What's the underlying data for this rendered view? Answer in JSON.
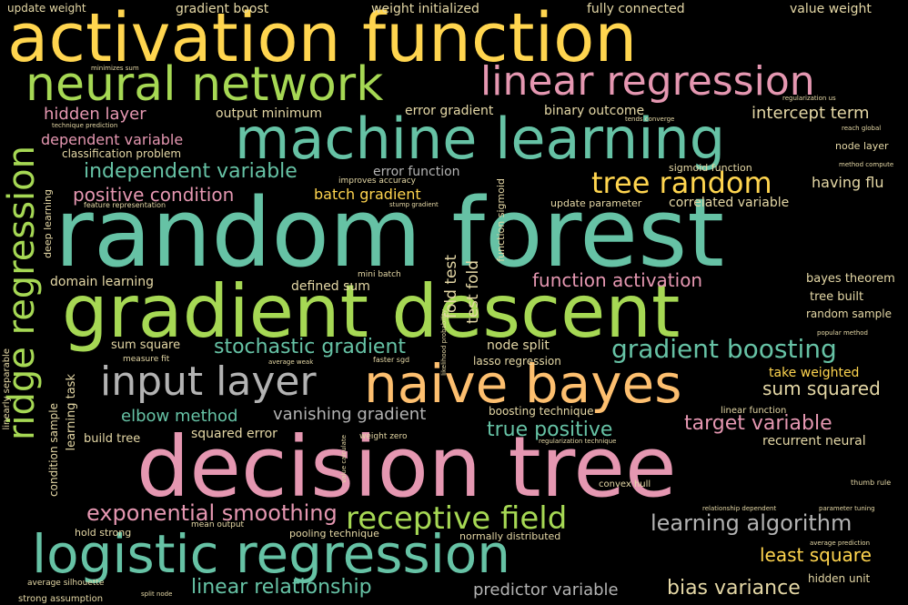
{
  "palette": {
    "background": "#000000",
    "yellow": "#FFD54F",
    "teal": "#66C2A5",
    "pink": "#E597B1",
    "green": "#A6D854",
    "peach": "#FDBF6F",
    "gray": "#B3B3B3",
    "beige": "#E5D8A6"
  },
  "words": [
    "activation function",
    "random forest",
    "decision tree",
    "gradient descent",
    "machine learning",
    "logistic regression",
    "naive bayes",
    "neural network",
    "linear regression",
    "ridge regression",
    "input layer",
    "tree random",
    "receptive field",
    "gradient boosting",
    "exponential smoothing",
    "learning algorithm",
    "stochastic gradient",
    "independent variable",
    "function activation",
    "target variable",
    "positive condition",
    "vanishing gradient",
    "true positive",
    "elbow method",
    "dependent variable",
    "hidden layer",
    "sum squared",
    "linear relationship",
    "bias variance",
    "predictor variable",
    "least square",
    "intercept term",
    "batch gradient",
    "take weighted",
    "having flu",
    "fully connected",
    "gradient boost",
    "update weight",
    "weight initialized",
    "value weight",
    "output minimum",
    "error gradient",
    "binary outcome",
    "error function",
    "correlated variable",
    "squared error",
    "recurrent neural",
    "domain learning",
    "defined sum",
    "node split",
    "sum square",
    "build tree",
    "fold test",
    "test fold",
    "classification problem",
    "bayes theorem",
    "tree built",
    "random sample",
    "node layer",
    "sigmoid function",
    "boosting technique",
    "lasso regression",
    "learning task",
    "condition sample",
    "deep learning",
    "linearly separable",
    "function sigmoid",
    "update parameter",
    "convex hull",
    "hidden unit",
    "pooling technique",
    "normally distributed",
    "hold strong",
    "strong assumption",
    "average silhouette",
    "measure fit",
    "average weak",
    "faster sgd",
    "weight zero",
    "mean output",
    "mini batch",
    "minimizes sum",
    "technique prediction",
    "feature representation",
    "stump gradient",
    "improves accuracy",
    "regularization us",
    "reach global",
    "tends converge",
    "method compute",
    "popular method",
    "linear function",
    "regularization technique",
    "thumb rule",
    "relationship dependent",
    "parameter tuning",
    "average prediction",
    "split node",
    "likelihood probability",
    "value calculate"
  ]
}
